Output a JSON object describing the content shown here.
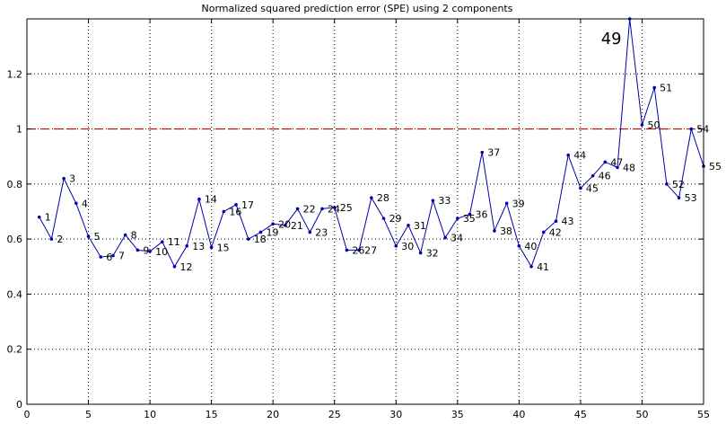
{
  "chart_data": {
    "type": "line",
    "title": "Normalized squared prediction error (SPE) using 2 components",
    "xlabel": "",
    "ylabel": "",
    "xlim": [
      0,
      55
    ],
    "ylim": [
      0,
      1.4
    ],
    "xticks": [
      "0",
      "5",
      "10",
      "15",
      "20",
      "25",
      "30",
      "35",
      "40",
      "45",
      "50",
      "55"
    ],
    "yticks": [
      "0",
      "0.2",
      "0.4",
      "0.6",
      "0.8",
      "1",
      "1.2"
    ],
    "grid": true,
    "threshold": 1.0,
    "threshold_color": "#dd0000",
    "series_color": "#0000aa",
    "highlight_label": "49",
    "series": [
      {
        "x": [
          1,
          2,
          3,
          4,
          5,
          6,
          7,
          8,
          9,
          10,
          11,
          12,
          13,
          14,
          15,
          16,
          17,
          18,
          19,
          20,
          21,
          22,
          23,
          24,
          25,
          26,
          27,
          28,
          29,
          30,
          31,
          32,
          33,
          34,
          35,
          36,
          37,
          38,
          39,
          40,
          41,
          42,
          43,
          44,
          45,
          46,
          47,
          48,
          49,
          50,
          51,
          52,
          53,
          54,
          55
        ],
        "values": [
          0.68,
          0.6,
          0.82,
          0.73,
          0.61,
          0.535,
          0.54,
          0.615,
          0.56,
          0.555,
          0.59,
          0.5,
          0.575,
          0.745,
          0.57,
          0.7,
          0.725,
          0.6,
          0.625,
          0.655,
          0.65,
          0.71,
          0.625,
          0.71,
          0.715,
          0.56,
          0.56,
          0.75,
          0.675,
          0.575,
          0.65,
          0.55,
          0.74,
          0.605,
          0.675,
          0.69,
          0.915,
          0.63,
          0.73,
          0.575,
          0.5,
          0.625,
          0.665,
          0.905,
          0.785,
          0.83,
          0.88,
          0.86,
          1.4,
          1.015,
          1.15,
          0.8,
          0.75,
          1.0,
          0.865
        ]
      }
    ],
    "point_labels": [
      "1",
      "2",
      "3",
      "4",
      "5",
      "6",
      "7",
      "8",
      "9",
      "10",
      "11",
      "12",
      "13",
      "14",
      "15",
      "16",
      "17",
      "18",
      "19",
      "20",
      "21",
      "22",
      "23",
      "24",
      "25",
      "26",
      "27",
      "28",
      "29",
      "30",
      "31",
      "32",
      "33",
      "34",
      "35",
      "36",
      "37",
      "38",
      "39",
      "40",
      "41",
      "42",
      "43",
      "44",
      "45",
      "46",
      "47",
      "48",
      "",
      "50",
      "51",
      "52",
      "53",
      "54",
      "55"
    ]
  }
}
